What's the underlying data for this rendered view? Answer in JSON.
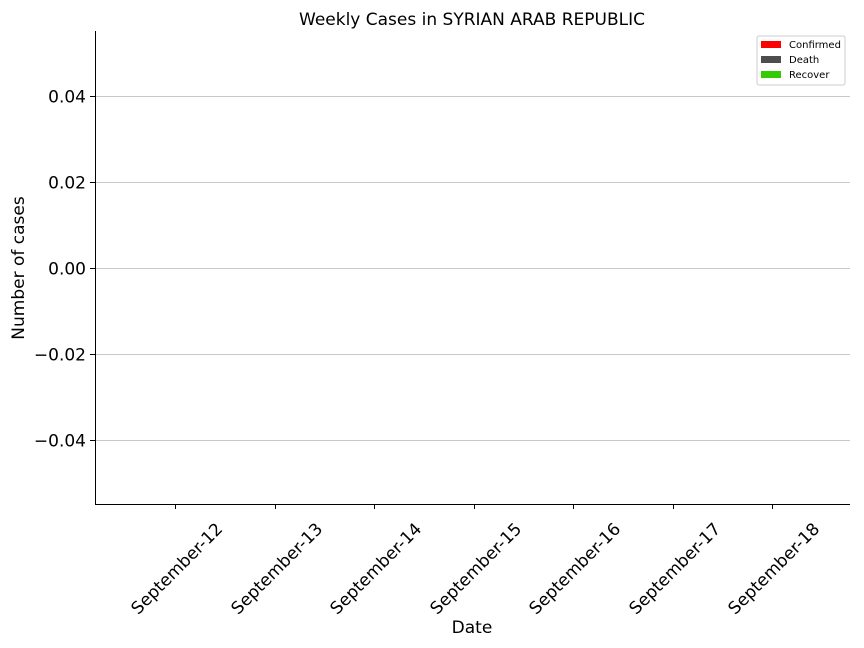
{
  "chart_data": {
    "type": "bar",
    "title": "Weekly Cases in SYRIAN ARAB REPUBLIC",
    "xlabel": "Date",
    "ylabel": "Number of cases",
    "categories": [
      "September-12",
      "September-13",
      "September-14",
      "September-15",
      "September-16",
      "September-17",
      "September-18"
    ],
    "series": [
      {
        "name": "Confirmed",
        "color": "#ff0000",
        "values": [
          0,
          0,
          0,
          0,
          0,
          0,
          0
        ]
      },
      {
        "name": "Death",
        "color": "#4d4d4d",
        "values": [
          0,
          0,
          0,
          0,
          0,
          0,
          0
        ]
      },
      {
        "name": "Recover",
        "color": "#33cc00",
        "values": [
          0,
          0,
          0,
          0,
          0,
          0,
          0
        ]
      }
    ],
    "ylim": [
      -0.055,
      0.055
    ],
    "yticks": [
      0.04,
      0.02,
      0.0,
      -0.02,
      -0.04
    ],
    "ytick_labels": [
      "0.04",
      "0.02",
      "0.00",
      "−0.02",
      "−0.04"
    ],
    "grid": "horizontal",
    "legend_position": "top-right"
  }
}
